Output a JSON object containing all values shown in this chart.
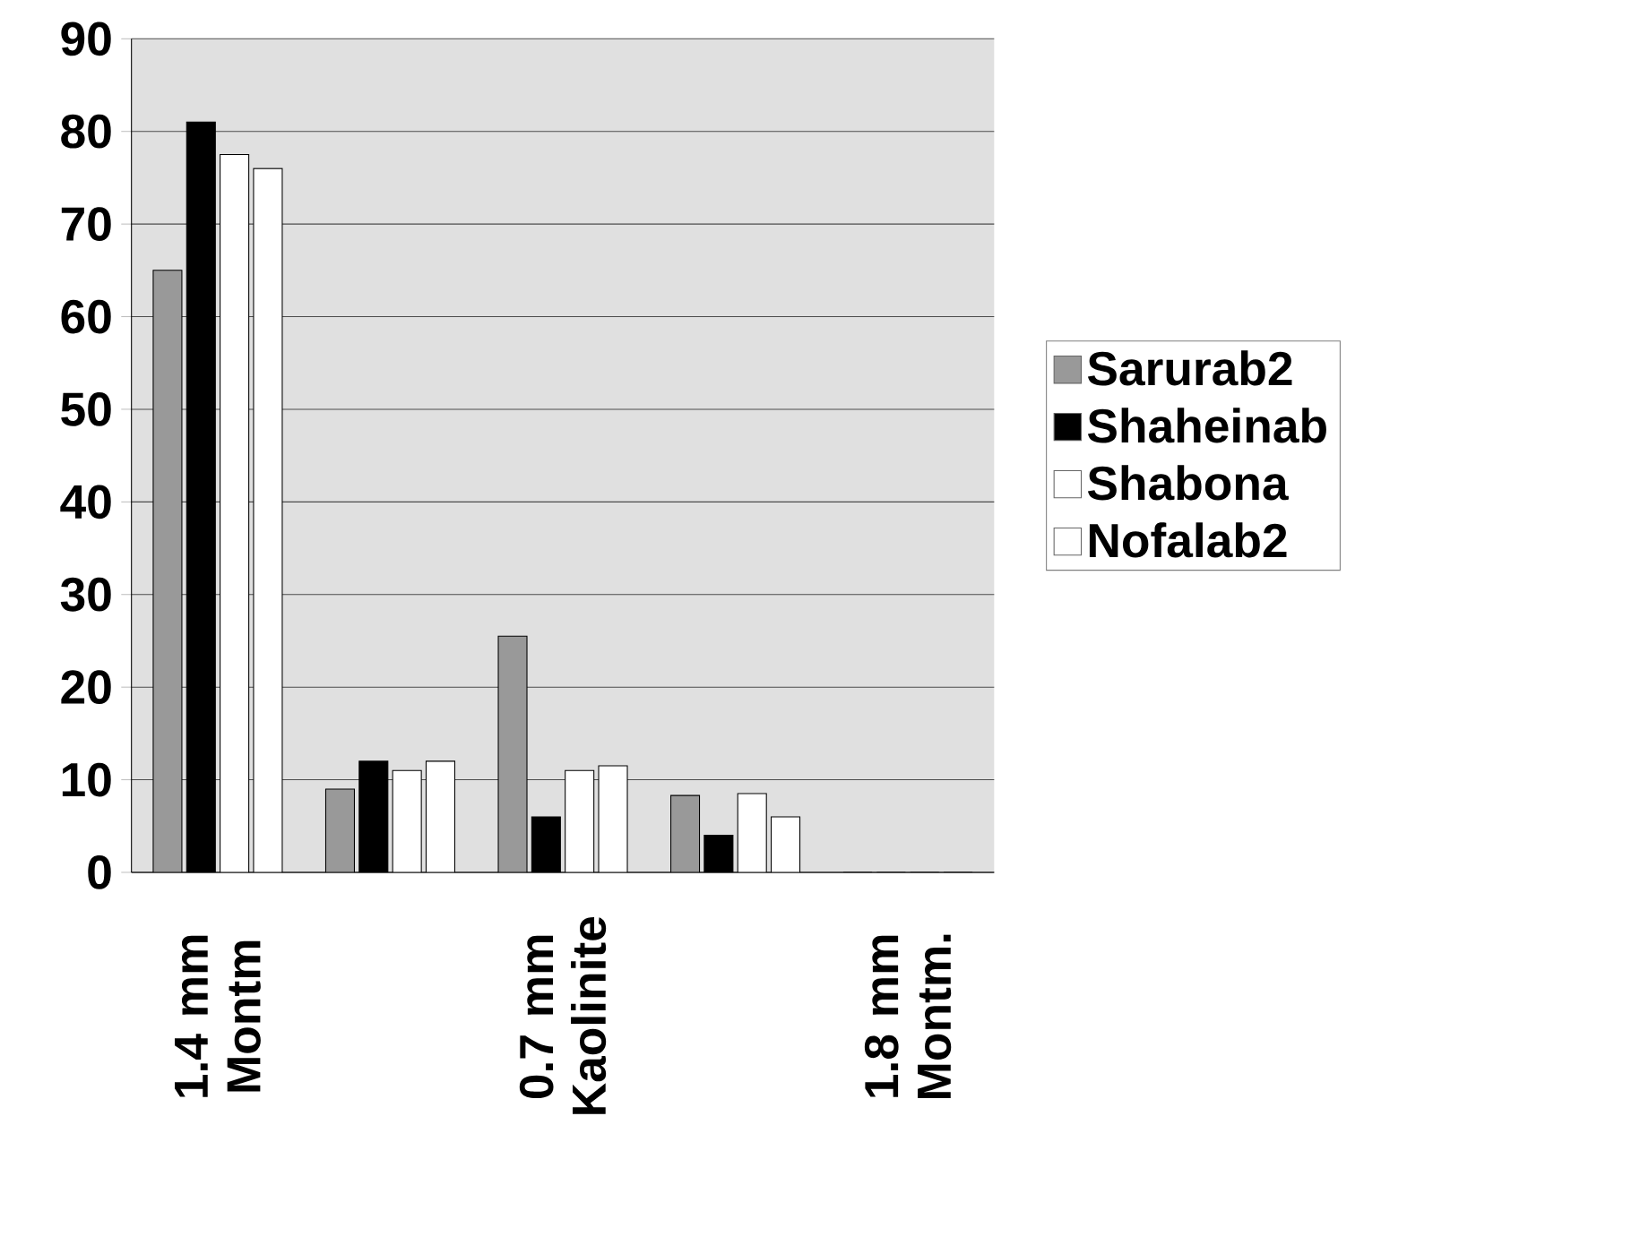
{
  "chart_data": {
    "type": "bar",
    "categories": [
      "1.4 mm Montm",
      null,
      "0.7 mm Kaolinite",
      null,
      "1.8 mm Montm."
    ],
    "series": [
      {
        "name": "Sarurab2",
        "color": "#999999",
        "values": [
          65,
          9,
          25.5,
          8.3,
          0
        ]
      },
      {
        "name": "Shaheinab",
        "color": "#000000",
        "values": [
          81,
          12,
          6,
          4,
          0
        ]
      },
      {
        "name": "Shabona",
        "color": "#ffffff",
        "values": [
          77.5,
          11,
          11,
          8.5,
          0
        ]
      },
      {
        "name": "Nofalab2",
        "color": "#ffffff",
        "values": [
          76,
          12,
          11.5,
          6,
          0
        ]
      }
    ],
    "ylim": [
      0,
      90
    ],
    "yticks": [
      0,
      10,
      20,
      30,
      40,
      50,
      60,
      70,
      80,
      90
    ],
    "grid": "y",
    "legend": "right"
  }
}
